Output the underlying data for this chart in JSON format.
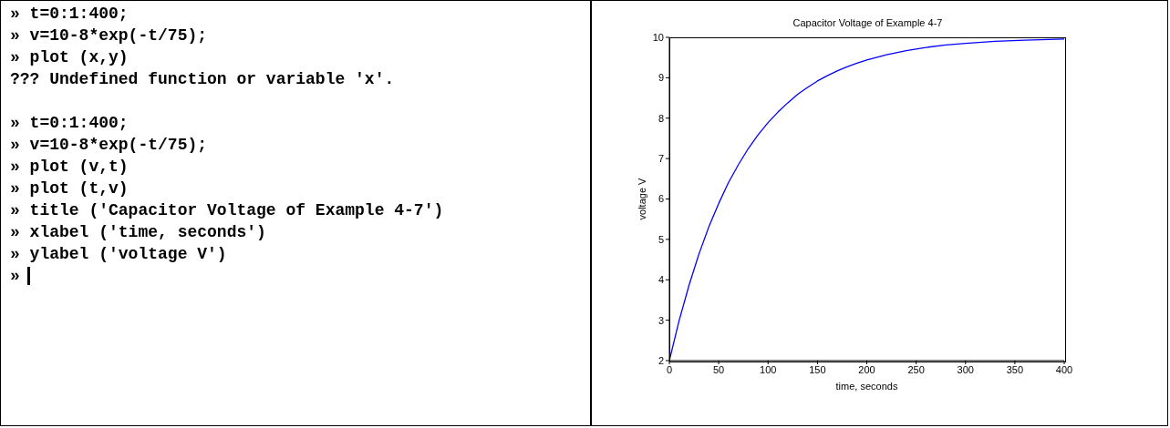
{
  "chart_data": [
    {
      "type": "other",
      "annotations": [
        "» t=0:1:400;",
        "» v=10-8*exp(-t/75);",
        "» plot (x,y)",
        "??? Undefined function or variable 'x'.",
        "» t=0:1:400;",
        "» v=10-8*exp(-t/75);",
        "» plot (v,t)",
        "» plot (t,v)",
        "» title ('Capacitor Voltage of Example 4-7')",
        "» xlabel ('time, seconds')",
        "» ylabel ('voltage V')",
        "»"
      ]
    },
    {
      "type": "line",
      "title": "Capacitor Voltage of Example 4-7",
      "xlabel": "time, seconds",
      "ylabel": "voltage V",
      "x": [
        0,
        10,
        20,
        30,
        40,
        50,
        60,
        70,
        80,
        90,
        100,
        110,
        120,
        130,
        140,
        150,
        160,
        170,
        180,
        190,
        200,
        220,
        240,
        260,
        280,
        300,
        330,
        360,
        400
      ],
      "series": [
        {
          "color": "#0000ff",
          "values": [
            2,
            3.0,
            3.87,
            4.64,
            5.31,
            5.89,
            6.41,
            6.85,
            7.25,
            7.59,
            7.89,
            8.15,
            8.38,
            8.59,
            8.76,
            8.92,
            9.05,
            9.17,
            9.27,
            9.36,
            9.44,
            9.57,
            9.67,
            9.75,
            9.81,
            9.85,
            9.9,
            9.93,
            9.96
          ]
        }
      ],
      "xlim": [
        0,
        400
      ],
      "xticks": [
        0,
        50,
        100,
        150,
        200,
        250,
        300,
        350,
        400
      ],
      "ylim": [
        2,
        10
      ],
      "yticks": [
        2,
        3,
        4,
        5,
        6,
        7,
        8,
        9,
        10
      ],
      "grid": false,
      "legend": false,
      "marker": "none",
      "line_style": "solid"
    }
  ]
}
